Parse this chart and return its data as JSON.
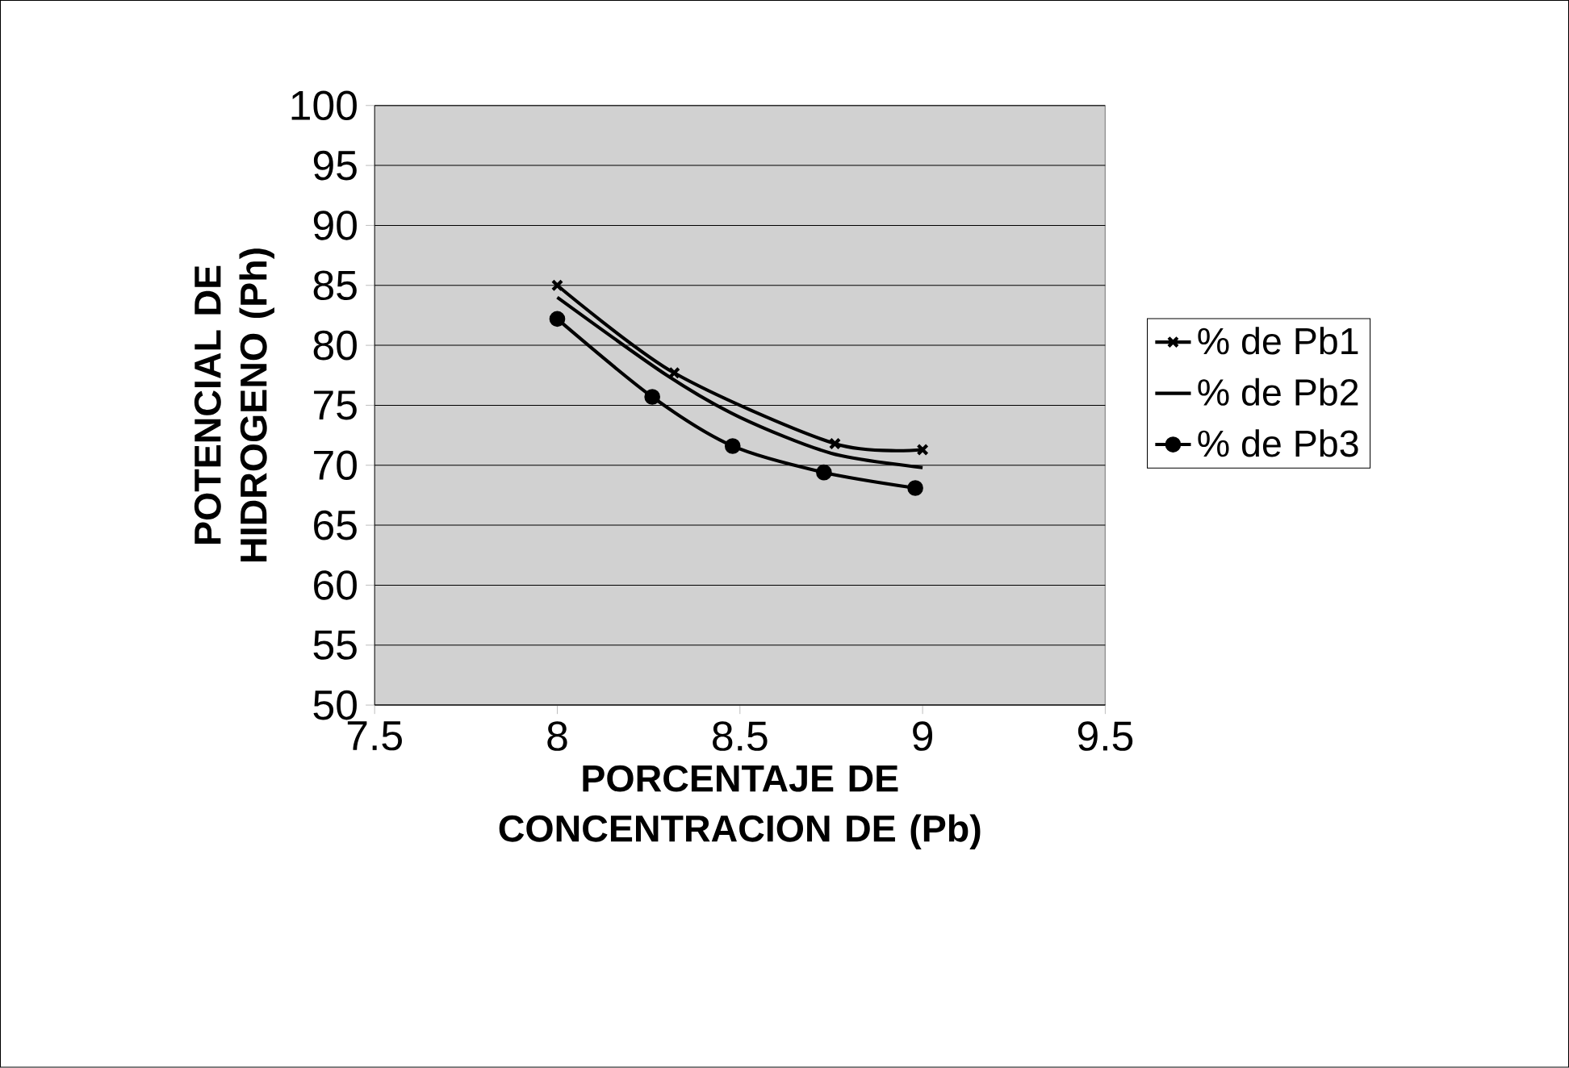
{
  "chart_data": {
    "type": "line",
    "xlabel": "PORCENTAJE DE CONCENTRACION DE (Pb)",
    "ylabel": "POTENCIAL DE HIDROGENO (Ph)",
    "xlim": [
      7.5,
      9.5
    ],
    "ylim": [
      50,
      100
    ],
    "xticks": [
      7.5,
      8,
      8.5,
      9,
      9.5
    ],
    "yticks": [
      50,
      55,
      60,
      65,
      70,
      75,
      80,
      85,
      90,
      95,
      100
    ],
    "grid": "y",
    "legend": "right",
    "series": [
      {
        "name": "% de Pb1",
        "color": "#000000",
        "marker": "cross",
        "x": [
          8,
          8.32,
          8.76,
          9
        ],
        "values": [
          85,
          77.7,
          71.8,
          71.3
        ]
      },
      {
        "name": "% de Pb2",
        "color": "#000000",
        "marker": "none",
        "x": [
          8,
          8.3,
          8.5,
          8.75,
          9
        ],
        "values": [
          84,
          77.5,
          74,
          71,
          69.8
        ]
      },
      {
        "name": "% de Pb3",
        "color": "#000000",
        "marker": "circle",
        "x": [
          8,
          8.26,
          8.48,
          8.73,
          8.98
        ],
        "values": [
          82.2,
          75.7,
          71.6,
          69.4,
          68.1
        ]
      }
    ]
  }
}
